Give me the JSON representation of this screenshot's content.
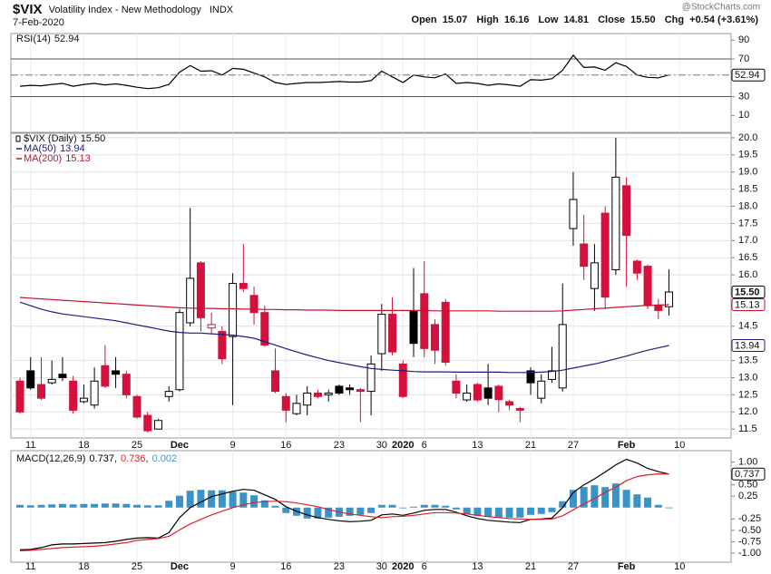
{
  "header": {
    "symbol": "$VIX",
    "name": "Volatility Index - New Methodology",
    "exchange": "INDX",
    "date": "7-Feb-2020",
    "open_label": "Open",
    "high_label": "High",
    "low_label": "Low",
    "close_label": "Close",
    "change_label": "Chg",
    "change": "+0.54 (+3.61%)",
    "watermark": "@StockCharts.com"
  },
  "chart_data": [
    {
      "type": "line",
      "ylim": [
        -8,
        97
      ],
      "yticks": [
        10,
        30,
        50,
        70,
        90
      ],
      "bands": [
        30,
        70
      ],
      "grid": false,
      "series": [
        {
          "name": "RSI(14)",
          "color": "#000000",
          "end_label": true,
          "values": [
            41,
            42,
            41.5,
            43,
            44,
            41,
            43,
            44,
            42.5,
            43.5,
            42,
            40,
            38.5,
            39.5,
            43,
            56,
            63,
            57,
            57.5,
            53,
            60,
            59,
            55,
            51,
            45,
            43,
            44,
            45,
            45,
            45.5,
            46,
            45.5,
            45.5,
            47,
            57,
            51,
            45,
            53,
            51,
            50,
            54,
            44,
            45,
            44,
            42,
            43.5,
            42.5,
            41,
            48,
            47.5,
            49,
            58,
            74,
            61,
            61.5,
            58,
            66,
            62,
            53,
            50.5,
            50,
            52.94,
            null
          ]
        }
      ]
    },
    {
      "type": "candlestick",
      "name": "$VIX (Daily)",
      "up_color": "#000000",
      "down_color": "#d4103c",
      "end_label": true,
      "grid": true,
      "ylim": [
        11.24,
        20.13
      ],
      "yticks": [
        {
          "value": 11.5,
          "label": "11.5"
        },
        {
          "value": 12,
          "label": "12.0"
        },
        12.5,
        {
          "value": 13,
          "label": "13.0"
        },
        13.5,
        14.5,
        {
          "value": 16,
          "label": "16.0"
        },
        16.5,
        {
          "value": 17,
          "label": "17.0"
        },
        17.5,
        {
          "value": 18,
          "label": "18.0"
        },
        18.5,
        {
          "value": 19,
          "label": "19.0"
        },
        19.5,
        {
          "value": 20,
          "label": "20.0"
        }
      ],
      "categories": [
        null,
        "11",
        null,
        null,
        null,
        null,
        "18",
        null,
        null,
        null,
        null,
        "25",
        null,
        null,
        null,
        "Dec",
        null,
        null,
        null,
        null,
        "9",
        null,
        null,
        null,
        null,
        "16",
        null,
        null,
        null,
        null,
        "23",
        null,
        null,
        null,
        "30",
        null,
        "2020",
        null,
        "6",
        null,
        null,
        null,
        null,
        "13",
        null,
        null,
        null,
        null,
        "21",
        null,
        null,
        null,
        "27",
        null,
        null,
        null,
        null,
        "Feb",
        null,
        null,
        null,
        null,
        "10"
      ],
      "open": [
        12.9,
        13.2,
        12.8,
        12.85,
        13.1,
        12.9,
        12.3,
        12.2,
        13.35,
        13.2,
        13.1,
        12.45,
        11.9,
        11.5,
        12.45,
        12.65,
        14.6,
        16.35,
        14.45,
        14.35,
        14.2,
        15.75,
        15.4,
        14.9,
        13.2,
        12.45,
        11.95,
        12.2,
        12.55,
        12.5,
        12.75,
        12.7,
        12.65,
        12.6,
        13.7,
        14.85,
        13.4,
        14.95,
        15.45,
        14.55,
        15.2,
        12.9,
        12.35,
        12.8,
        12.7,
        12.75,
        12.3,
        12.1,
        13.2,
        12.4,
        12.95,
        12.7,
        17.35,
        16.9,
        15.6,
        17.8,
        16.15,
        18.6,
        16.4,
        16.25,
        15.1,
        15.07,
        null
      ],
      "high": [
        13.0,
        13.6,
        13.6,
        13.5,
        13.6,
        13.05,
        12.8,
        13.3,
        13.95,
        13.6,
        13.2,
        12.5,
        12.0,
        11.8,
        12.75,
        15.0,
        17.95,
        16.4,
        14.9,
        14.5,
        16.05,
        16.9,
        15.65,
        15.1,
        13.85,
        12.55,
        12.5,
        12.75,
        12.65,
        12.65,
        12.8,
        12.8,
        12.7,
        13.65,
        15.15,
        15.35,
        13.5,
        16.2,
        16.4,
        14.7,
        15.3,
        13.1,
        12.8,
        12.85,
        13.4,
        12.8,
        12.35,
        12.15,
        13.3,
        13.1,
        13.9,
        15.75,
        19.0,
        17.75,
        16.9,
        18.0,
        20.0,
        18.85,
        16.45,
        16.3,
        15.3,
        16.16,
        null
      ],
      "low": [
        11.95,
        12.65,
        12.35,
        12.8,
        12.9,
        11.95,
        12.25,
        12.1,
        12.7,
        12.7,
        12.4,
        11.8,
        11.4,
        11.5,
        12.3,
        12.6,
        14.5,
        14.35,
        14.3,
        13.4,
        12.2,
        15.5,
        14.55,
        13.9,
        12.55,
        11.7,
        11.9,
        11.9,
        12.4,
        12.3,
        12.5,
        12.5,
        11.7,
        11.9,
        13.2,
        13.65,
        12.4,
        13.6,
        13.6,
        13.4,
        13.35,
        12.4,
        12.3,
        12.3,
        12.2,
        12.0,
        12.05,
        11.7,
        12.5,
        12.25,
        12.85,
        12.6,
        16.85,
        15.85,
        14.95,
        15.0,
        16.0,
        15.65,
        15.85,
        15.0,
        14.7,
        14.81,
        null
      ],
      "close": [
        12.0,
        12.7,
        12.4,
        12.95,
        13.0,
        12.05,
        12.4,
        12.9,
        12.75,
        13.1,
        12.5,
        11.85,
        11.45,
        11.75,
        12.6,
        14.9,
        15.9,
        14.75,
        14.55,
        13.55,
        15.75,
        15.6,
        14.9,
        13.95,
        12.6,
        12.05,
        12.25,
        12.55,
        12.45,
        12.55,
        12.55,
        12.65,
        12.6,
        13.4,
        14.85,
        13.75,
        12.45,
        14.0,
        13.85,
        13.8,
        13.45,
        12.55,
        12.55,
        12.35,
        12.4,
        12.36,
        12.2,
        12.05,
        12.85,
        12.9,
        13.2,
        14.55,
        18.2,
        16.25,
        16.35,
        15.35,
        18.85,
        17.15,
        16.05,
        15.1,
        14.96,
        15.5,
        null
      ],
      "value_labels": [
        null,
        null,
        null,
        null,
        null,
        null,
        null,
        null,
        null,
        null,
        null,
        null,
        null,
        null,
        null,
        null,
        null,
        null,
        null,
        null,
        null,
        null,
        null,
        null,
        null,
        null,
        null,
        null,
        null,
        null,
        null,
        null,
        null,
        null,
        null,
        null,
        null,
        null,
        null,
        null,
        null,
        null,
        null,
        null,
        null,
        null,
        null,
        null,
        null,
        null,
        null,
        null,
        null,
        null,
        null,
        null,
        null,
        null,
        null,
        null,
        null,
        "15.50",
        null
      ],
      "series": [
        {
          "name": "MA(50)",
          "color": "#1c1c80",
          "end_label": true,
          "values": [
            15.2,
            15.1,
            15.0,
            14.92,
            14.86,
            14.82,
            14.78,
            14.74,
            14.7,
            14.66,
            14.6,
            14.54,
            14.48,
            14.42,
            14.36,
            14.32,
            14.3,
            14.3,
            14.28,
            14.26,
            14.24,
            14.2,
            14.15,
            14.05,
            13.95,
            13.85,
            13.75,
            13.66,
            13.58,
            13.5,
            13.44,
            13.38,
            13.32,
            13.27,
            13.24,
            13.22,
            13.2,
            13.18,
            13.17,
            13.17,
            13.17,
            13.16,
            13.16,
            13.16,
            13.16,
            13.16,
            13.15,
            13.15,
            13.15,
            13.16,
            13.18,
            13.22,
            13.28,
            13.34,
            13.4,
            13.47,
            13.55,
            13.63,
            13.72,
            13.8,
            13.87,
            13.94,
            null
          ]
        },
        {
          "name": "MA(200)",
          "color": "#c8102e",
          "end_label": true,
          "values": [
            15.34,
            15.32,
            15.3,
            15.28,
            15.26,
            15.24,
            15.22,
            15.2,
            15.18,
            15.16,
            15.14,
            15.12,
            15.1,
            15.08,
            15.06,
            15.04,
            15.03,
            15.02,
            15.02,
            15.01,
            15.01,
            15.0,
            15.0,
            14.99,
            14.99,
            14.98,
            14.98,
            14.97,
            14.97,
            14.97,
            14.96,
            14.96,
            14.96,
            14.96,
            14.96,
            14.96,
            14.96,
            14.96,
            14.96,
            14.95,
            14.95,
            14.95,
            14.95,
            14.95,
            14.95,
            14.94,
            14.94,
            14.94,
            14.94,
            14.94,
            14.94,
            14.95,
            14.97,
            14.99,
            15.01,
            15.03,
            15.05,
            15.07,
            15.09,
            15.11,
            15.12,
            15.13,
            null
          ]
        }
      ]
    },
    {
      "type": "line",
      "title": "MACD(12,26,9)",
      "legend_separator": ",",
      "grid": false,
      "ylim": [
        -1.2,
        1.25
      ],
      "yticks": [
        {
          "value": -1,
          "label": "-1.00"
        },
        {
          "value": -0.75,
          "label": "-0.75"
        },
        {
          "value": -0.5,
          "label": "-0.50"
        },
        {
          "value": -0.25,
          "label": "-0.25"
        },
        {
          "value": 0.25,
          "label": "0.25"
        },
        {
          "value": 0.5,
          "label": "0.50"
        },
        {
          "value": 0.75,
          "label": "0.75"
        },
        {
          "value": 1,
          "label": "1.00"
        }
      ],
      "series": [
        {
          "type": "bar",
          "color": "#3a93c6",
          "end_label": false,
          "values": [
            0.06,
            0.05,
            0.06,
            0.07,
            0.08,
            0.07,
            0.08,
            0.08,
            0.09,
            0.09,
            0.08,
            0.06,
            0.05,
            0.05,
            0.15,
            0.26,
            0.37,
            0.39,
            0.38,
            0.38,
            0.35,
            0.33,
            0.27,
            0.16,
            0.04,
            -0.12,
            -0.18,
            -0.24,
            -0.24,
            -0.22,
            -0.2,
            -0.18,
            -0.16,
            -0.12,
            0.06,
            0.06,
            0.0,
            0.02,
            0.06,
            0.06,
            0.04,
            -0.04,
            -0.14,
            -0.18,
            -0.2,
            -0.22,
            -0.22,
            -0.22,
            -0.16,
            -0.14,
            -0.1,
            0.14,
            0.39,
            0.45,
            0.49,
            0.45,
            0.53,
            0.39,
            0.29,
            0.22,
            0.06,
            0.002,
            null
          ]
        },
        {
          "type": "line",
          "color": "#000000",
          "end_label": true,
          "values": [
            -0.93,
            -0.92,
            -0.88,
            -0.82,
            -0.8,
            -0.8,
            -0.79,
            -0.78,
            -0.77,
            -0.74,
            -0.7,
            -0.67,
            -0.66,
            -0.67,
            -0.55,
            -0.22,
            0.0,
            0.12,
            0.24,
            0.3,
            0.36,
            0.4,
            0.38,
            0.28,
            0.18,
            0.02,
            -0.08,
            -0.16,
            -0.22,
            -0.26,
            -0.29,
            -0.31,
            -0.3,
            -0.28,
            -0.16,
            -0.14,
            -0.17,
            -0.12,
            -0.06,
            -0.04,
            -0.04,
            -0.1,
            -0.18,
            -0.24,
            -0.28,
            -0.3,
            -0.32,
            -0.33,
            -0.26,
            -0.25,
            -0.23,
            0.0,
            0.33,
            0.5,
            0.63,
            0.78,
            0.94,
            1.06,
            0.98,
            0.86,
            0.79,
            0.737,
            null
          ]
        },
        {
          "type": "line",
          "color": "#e0202a",
          "end_label": false,
          "values": [
            -0.95,
            -0.94,
            -0.92,
            -0.9,
            -0.88,
            -0.87,
            -0.86,
            -0.85,
            -0.83,
            -0.8,
            -0.77,
            -0.72,
            -0.7,
            -0.68,
            -0.63,
            -0.49,
            -0.36,
            -0.26,
            -0.16,
            -0.08,
            0.0,
            0.06,
            0.11,
            0.13,
            0.14,
            0.13,
            0.1,
            0.06,
            0.02,
            -0.04,
            -0.1,
            -0.14,
            -0.17,
            -0.2,
            -0.22,
            -0.2,
            -0.19,
            -0.17,
            -0.14,
            -0.11,
            -0.11,
            -0.12,
            -0.14,
            -0.17,
            -0.2,
            -0.22,
            -0.24,
            -0.25,
            -0.26,
            -0.26,
            -0.25,
            -0.18,
            -0.05,
            0.08,
            0.2,
            0.33,
            0.45,
            0.59,
            0.68,
            0.72,
            0.74,
            0.736,
            null
          ]
        }
      ],
      "legend_order": [
        1,
        2,
        0
      ]
    }
  ]
}
